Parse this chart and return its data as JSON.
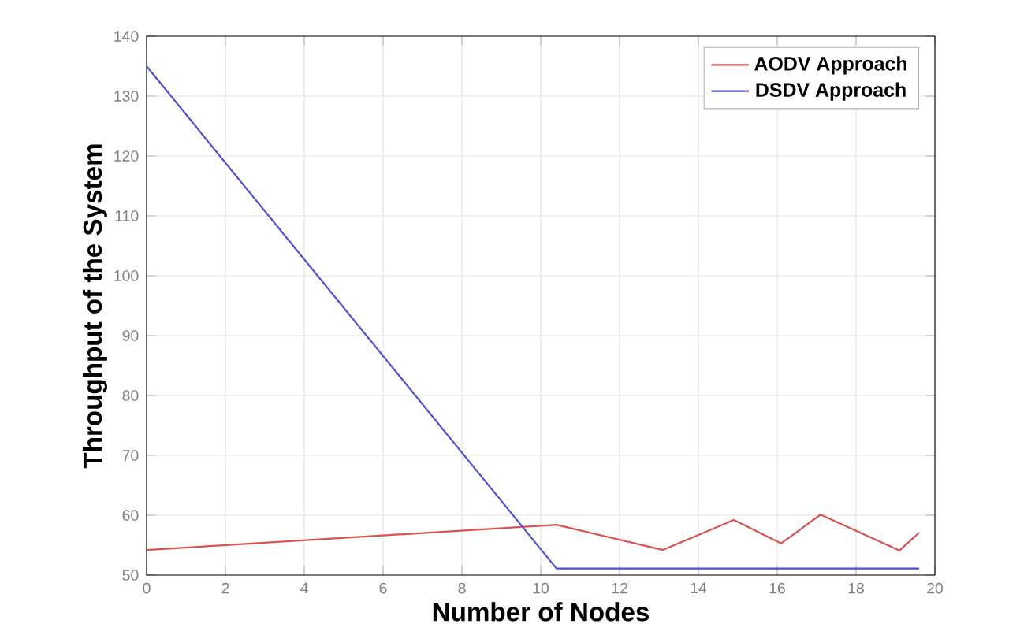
{
  "chart_data": {
    "type": "line",
    "xlabel": "Number of Nodes",
    "ylabel": "Throughput of the System",
    "series": [
      {
        "name": "AODV Approach",
        "color": "#d9534f",
        "x": [
          0,
          10.4,
          13.1,
          14.9,
          16.1,
          17.1,
          19.1,
          19.6
        ],
        "values": [
          54.2,
          58.4,
          54.2,
          59.2,
          55.3,
          60.1,
          54.1,
          57.1
        ]
      },
      {
        "name": "DSDV Approach",
        "color": "#4f4fd9",
        "x": [
          0,
          10.4,
          19.6
        ],
        "values": [
          135,
          51.1,
          51.1
        ]
      }
    ],
    "xlim": [
      0,
      20
    ],
    "xticks": [
      0,
      2,
      4,
      6,
      8,
      10,
      12,
      14,
      16,
      18,
      20
    ],
    "ylim": [
      50,
      140
    ],
    "yticks": [
      50,
      60,
      70,
      80,
      90,
      100,
      110,
      120,
      130,
      140
    ],
    "grid": true,
    "legend": "top right",
    "marker": "none",
    "line_style": "solid"
  }
}
